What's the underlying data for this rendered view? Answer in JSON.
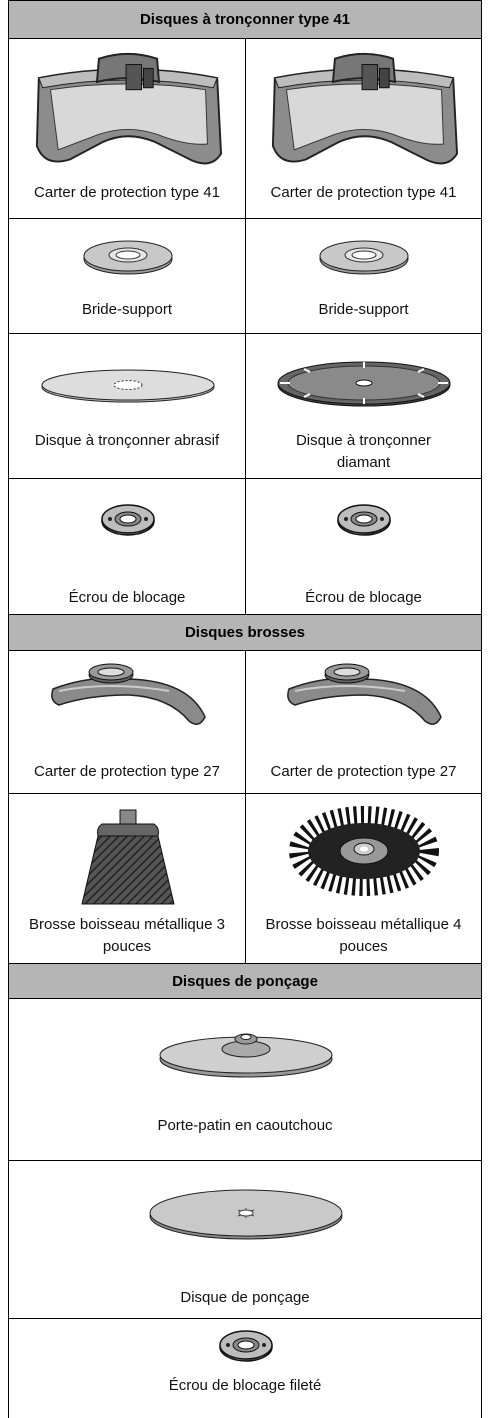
{
  "sections": [
    {
      "title": "Disques à tronçonner type 41",
      "rows": [
        [
          "Carter de protection type 41",
          "Carter de protection type 41"
        ],
        [
          "Bride-support",
          "Bride-support"
        ],
        [
          "Disque à tronçonner abrasif",
          "Disque à tronçonner diamant"
        ],
        [
          "Écrou de blocage",
          "Écrou de blocage"
        ]
      ]
    },
    {
      "title": "Disques brosses",
      "rows": [
        [
          "Carter de protection type 27",
          "Carter de protection type 27"
        ],
        [
          "Brosse boisseau métallique 3 pouces",
          "Brosse boisseau métallique 4 pouces"
        ]
      ]
    },
    {
      "title": "Disques de ponçage",
      "rows": [
        [
          "Porte-patin en caoutchouc"
        ],
        [
          "Disque de ponçage"
        ],
        [
          "Écrou de blocage fileté"
        ]
      ]
    }
  ]
}
